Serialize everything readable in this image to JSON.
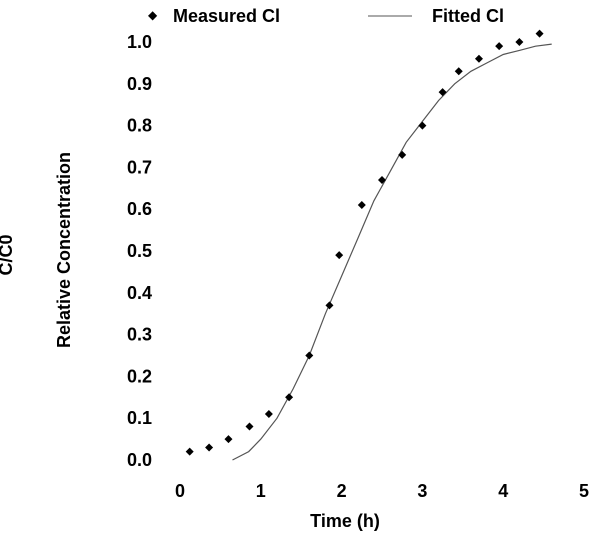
{
  "chart_data": {
    "type": "scatter",
    "xlabel": "Time (h)",
    "ylabel": "Relative Concentration",
    "ylabel_secondary": "C/C0",
    "xlim": [
      0,
      5
    ],
    "ylim": [
      0,
      1.0
    ],
    "x_ticks": [
      "0",
      "1",
      "2",
      "3",
      "4",
      "5"
    ],
    "y_ticks": [
      "0.0",
      "0.1",
      "0.2",
      "0.3",
      "0.4",
      "0.5",
      "0.6",
      "0.7",
      "0.8",
      "0.9",
      "1.0"
    ],
    "grid": false,
    "legend_position": "top",
    "series": [
      {
        "name": "Measured Cl",
        "type": "scatter",
        "marker": "diamond",
        "color": "#000000",
        "points": [
          [
            0.12,
            0.02
          ],
          [
            0.36,
            0.03
          ],
          [
            0.6,
            0.05
          ],
          [
            0.86,
            0.08
          ],
          [
            1.1,
            0.11
          ],
          [
            1.35,
            0.15
          ],
          [
            1.6,
            0.25
          ],
          [
            1.85,
            0.37
          ],
          [
            1.97,
            0.49
          ],
          [
            2.25,
            0.61
          ],
          [
            2.5,
            0.67
          ],
          [
            2.75,
            0.73
          ],
          [
            3.0,
            0.8
          ],
          [
            3.25,
            0.88
          ],
          [
            3.45,
            0.93
          ],
          [
            3.7,
            0.96
          ],
          [
            3.95,
            0.99
          ],
          [
            4.2,
            1.0
          ],
          [
            4.45,
            1.02
          ]
        ]
      },
      {
        "name": "Fitted Cl",
        "type": "line",
        "color": "#555555",
        "points": [
          [
            0.65,
            0.0
          ],
          [
            0.85,
            0.02
          ],
          [
            1.0,
            0.05
          ],
          [
            1.2,
            0.1
          ],
          [
            1.4,
            0.17
          ],
          [
            1.6,
            0.25
          ],
          [
            1.8,
            0.35
          ],
          [
            2.0,
            0.44
          ],
          [
            2.2,
            0.53
          ],
          [
            2.4,
            0.62
          ],
          [
            2.6,
            0.69
          ],
          [
            2.8,
            0.76
          ],
          [
            3.0,
            0.81
          ],
          [
            3.2,
            0.86
          ],
          [
            3.4,
            0.9
          ],
          [
            3.6,
            0.93
          ],
          [
            3.8,
            0.95
          ],
          [
            4.0,
            0.97
          ],
          [
            4.2,
            0.98
          ],
          [
            4.4,
            0.99
          ],
          [
            4.6,
            0.995
          ]
        ]
      }
    ]
  }
}
